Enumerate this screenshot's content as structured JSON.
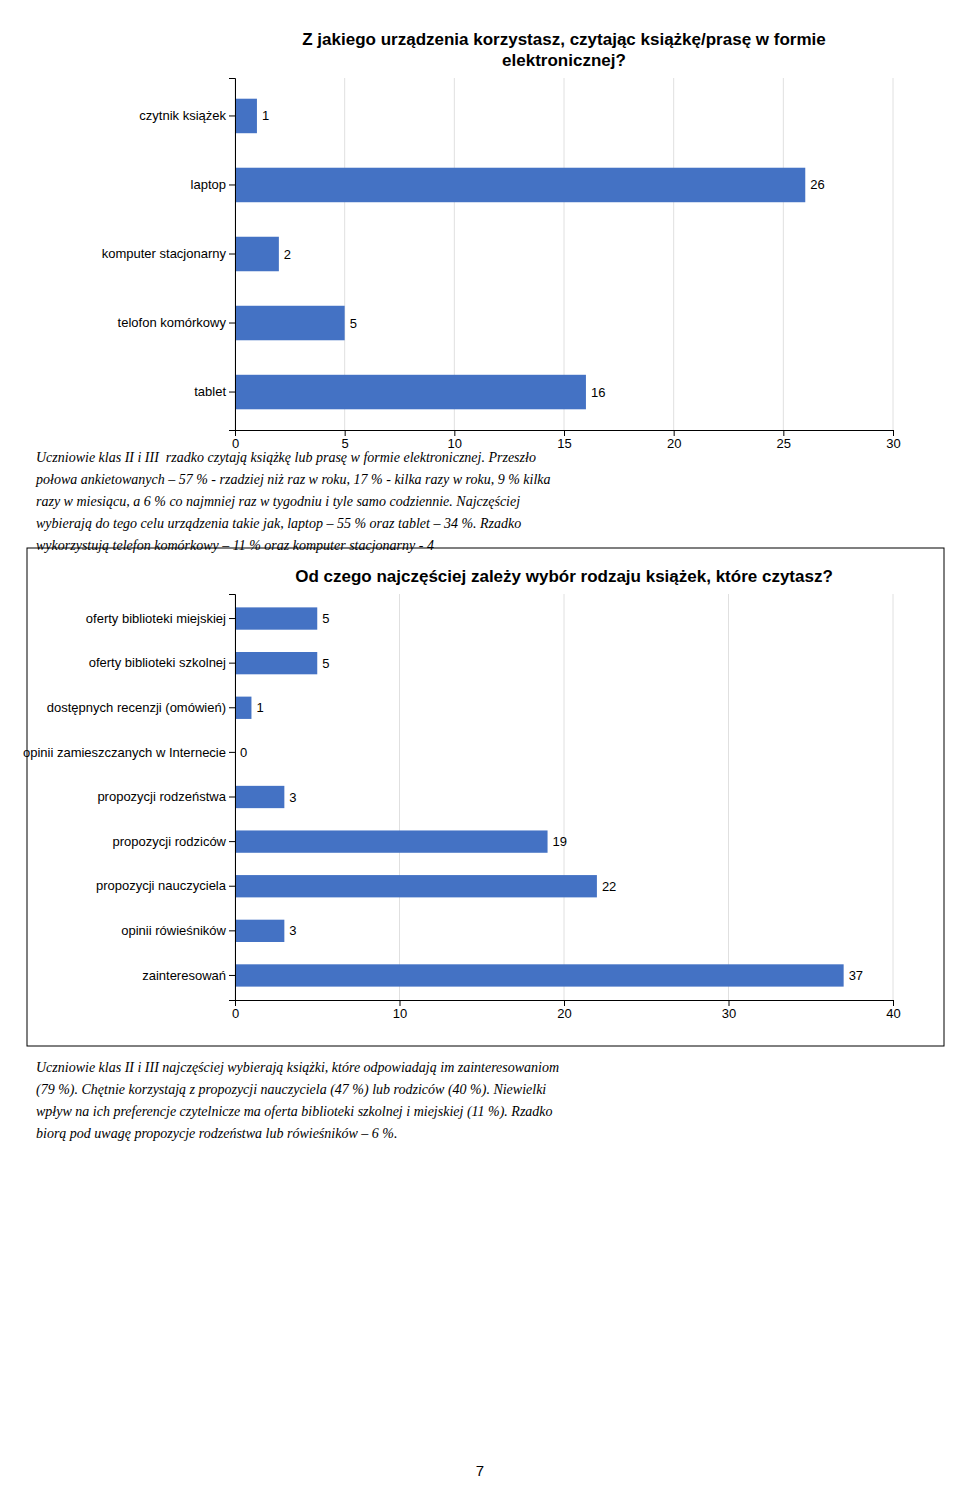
{
  "chart_data": [
    {
      "type": "bar",
      "title": "Z jakiego urządzenia korzystasz, czytając książkę/prasę w formie\nelektronicznej?",
      "orientation": "horizontal",
      "categories": [
        "tablet",
        "telofon komórkowy",
        "komputer stacjonarny",
        "laptop",
        "czytnik książek"
      ],
      "values": [
        16,
        5,
        2,
        26,
        1
      ],
      "color": "#4472C4",
      "xlim": [
        0,
        30
      ],
      "xticks": [
        0,
        5,
        10,
        15,
        20,
        25,
        30
      ],
      "grid": true,
      "data_labels": true,
      "annotations": [
        "Uczniowie klas II i III  rzadko czytają książkę lub prasę w formie elektronicznej. Przeszło",
        "połowa ankietowanych – 57 % - rzadziej niż raz w roku, 17 % - kilka razy w roku, 9 % kilka",
        "razy w miesiącu, a 6 % co najmniej raz w tygodniu i tyle samo codziennie. Najczęściej",
        "wybierają do tego celu urządzenia takie jak, laptop – 55 % oraz tablet – 34 %. Rzadko",
        "wykorzystują telefon komórkowy – 11 % oraz komputer stacjonarny - 4"
      ]
    },
    {
      "type": "bar",
      "title": "Od czego najczęściej zależy wybór rodzaju książek, które czytasz?",
      "orientation": "horizontal",
      "categories": [
        "zainteresowań",
        "opinii rówieśników",
        "propozycji nauczyciela",
        "propozycji rodziców",
        "propozycji rodzeństwa",
        "opinii zamieszczanych w Internecie",
        "dostępnych recenzji (omówień)",
        "oferty biblioteki szkolnej",
        "oferty biblioteki miejskiej"
      ],
      "values": [
        37,
        3,
        22,
        19,
        3,
        0,
        1,
        5,
        5
      ],
      "color": "#4472C4",
      "xlim": [
        0,
        40
      ],
      "xticks": [
        0,
        10,
        20,
        30,
        40
      ],
      "grid": true,
      "data_labels": true,
      "annotations": [
        "Uczniowie klas II i III najczęściej wybierają książki, które odpowiadają im zainteresowaniom",
        "(79 %). Chętnie korzystają z propozycji nauczyciela (47 %) lub rodziców (40 %). Niewielki",
        "wpływ na ich preferencje czytelnicze ma oferta biblioteki szkolnej i miejskiej (11 %). Rzadko",
        "biorą pod uwagę propozycje rodzeństwa lub rówieśników – 6 %.",
        "7"
      ]
    }
  ]
}
